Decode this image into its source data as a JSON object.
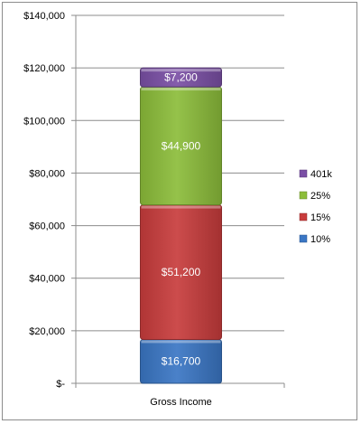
{
  "chart_data": {
    "type": "bar",
    "stacked": true,
    "categories": [
      "Gross Income"
    ],
    "series": [
      {
        "name": "10%",
        "values": [
          16700
        ],
        "label": "$16,700",
        "color": "#3a76c4"
      },
      {
        "name": "15%",
        "values": [
          51200
        ],
        "label": "$51,200",
        "color": "#c83c3c"
      },
      {
        "name": "25%",
        "values": [
          44900
        ],
        "label": "$44,900",
        "color": "#8cbd3a"
      },
      {
        "name": "401k",
        "values": [
          7200
        ],
        "label": "$7,200",
        "color": "#7a4fa5"
      }
    ],
    "ylim": [
      0,
      140000
    ],
    "yticks": [
      0,
      20000,
      40000,
      60000,
      80000,
      100000,
      120000,
      140000
    ],
    "ytick_labels": [
      "$-",
      "$20,000",
      "$40,000",
      "$60,000",
      "$80,000",
      "$100,000",
      "$120,000",
      "$140,000"
    ],
    "grid": true,
    "legend_position": "right",
    "legend_order": [
      "401k",
      "25%",
      "15%",
      "10%"
    ],
    "title": "",
    "xlabel": "",
    "ylabel": ""
  }
}
